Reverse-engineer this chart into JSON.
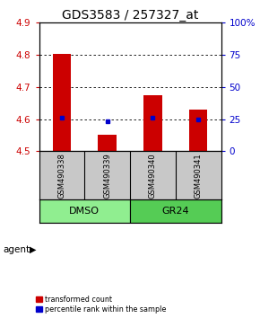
{
  "title": "GDS3583 / 257327_at",
  "samples": [
    "GSM490338",
    "GSM490339",
    "GSM490340",
    "GSM490341"
  ],
  "red_values": [
    4.803,
    4.552,
    4.675,
    4.63
  ],
  "blue_values": [
    4.603,
    4.592,
    4.603,
    4.6
  ],
  "ylim": [
    4.5,
    4.9
  ],
  "yticks_left": [
    4.5,
    4.6,
    4.7,
    4.8,
    4.9
  ],
  "yticks_right": [
    0,
    25,
    50,
    75,
    100
  ],
  "yticks_right_labels": [
    "0",
    "25",
    "50",
    "75",
    "100%"
  ],
  "bar_bottom": 4.5,
  "groups": [
    {
      "label": "DMSO",
      "color": "#90EE90",
      "samples": [
        0,
        1
      ]
    },
    {
      "label": "GR24",
      "color": "#55CC55",
      "samples": [
        2,
        3
      ]
    }
  ],
  "group_label": "agent",
  "red_color": "#CC0000",
  "blue_color": "#0000CC",
  "bg_color": "#FFFFFF",
  "plot_bg": "#FFFFFF",
  "label_box_color": "#C8C8C8",
  "legend_red": "transformed count",
  "legend_blue": "percentile rank within the sample",
  "title_fontsize": 10,
  "tick_fontsize": 7.5,
  "bar_width": 0.4
}
